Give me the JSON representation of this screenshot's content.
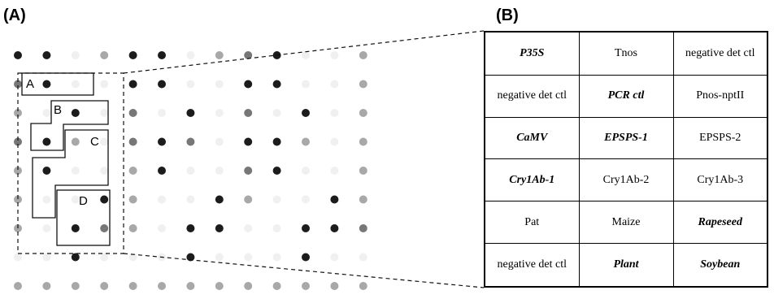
{
  "panel_a": {
    "label": "(A)",
    "regions": [
      {
        "label": "A"
      },
      {
        "label": "B"
      },
      {
        "label": "C"
      },
      {
        "label": "D"
      }
    ]
  },
  "panel_b": {
    "label": "(B)",
    "table": {
      "rows": [
        [
          {
            "text": "P35S",
            "bold": true
          },
          {
            "text": "Tnos",
            "bold": false
          },
          {
            "text": "negative det ctl",
            "bold": false
          }
        ],
        [
          {
            "text": "negative det ctl",
            "bold": false
          },
          {
            "text": "PCR ctl",
            "bold": true
          },
          {
            "text": "Pnos-nptII",
            "bold": false
          }
        ],
        [
          {
            "text": "CaMV",
            "bold": true
          },
          {
            "text": "EPSPS-1",
            "bold": true
          },
          {
            "text": "EPSPS-2",
            "bold": false
          }
        ],
        [
          {
            "text": "Cry1Ab-1",
            "bold": true
          },
          {
            "text": "Cry1Ab-2",
            "bold": false
          },
          {
            "text": "Cry1Ab-3",
            "bold": false
          }
        ],
        [
          {
            "text": "Pat",
            "bold": false
          },
          {
            "text": "Maize",
            "bold": false
          },
          {
            "text": "Rapeseed",
            "bold": true
          }
        ],
        [
          {
            "text": "negative det ctl",
            "bold": false
          },
          {
            "text": "Plant",
            "bold": true
          },
          {
            "text": "Soybean",
            "bold": true
          }
        ]
      ]
    }
  }
}
